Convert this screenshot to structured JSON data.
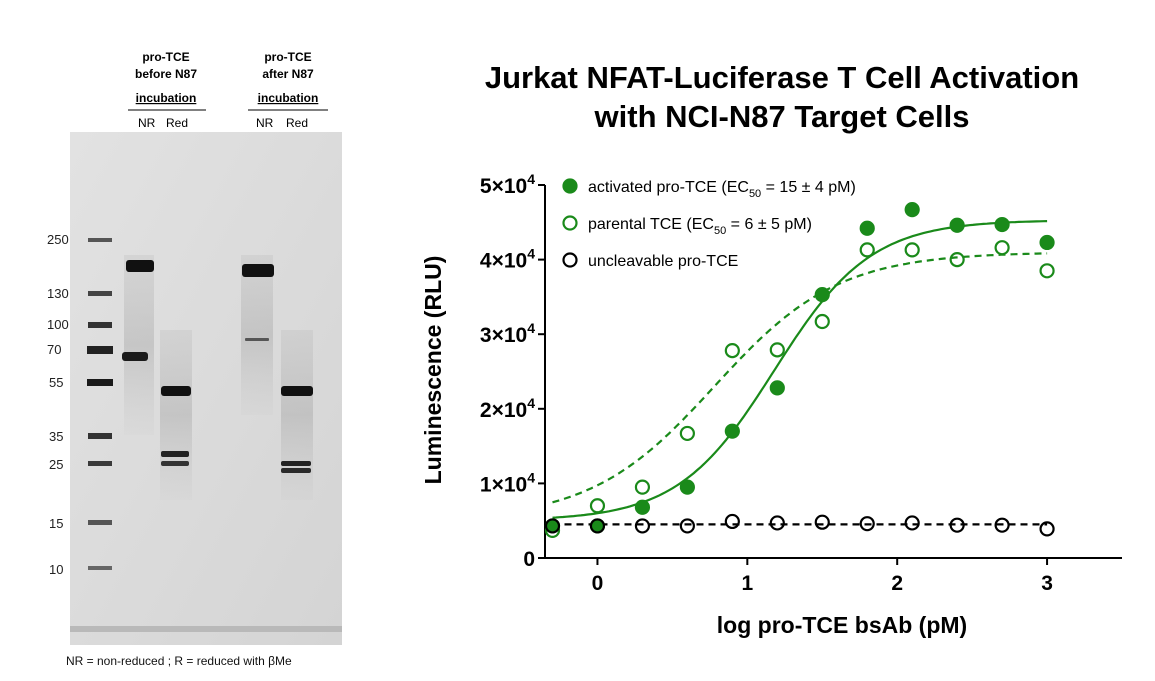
{
  "gel": {
    "headers": [
      {
        "lines": [
          "pro-TCE",
          "before N87",
          "incubation"
        ],
        "lanes": [
          "NR",
          "Red"
        ]
      },
      {
        "lines": [
          "pro-TCE",
          "after N87",
          "incubation"
        ],
        "lanes": [
          "NR",
          "Red"
        ]
      }
    ],
    "markers": [
      "250",
      "130",
      "100",
      "70",
      "55",
      "35",
      "25",
      "15",
      "10"
    ],
    "footnote": "NR = non-reduced ; R = reduced with βMe"
  },
  "chart_data": {
    "type": "scatter",
    "title_lines": [
      "Jurkat NFAT-Luciferase T Cell Activation",
      "with NCI-N87 Target Cells"
    ],
    "xlabel": "log pro-TCE bsAb (pM)",
    "ylabel": "Luminescence (RLU)",
    "xlim": [
      -0.35,
      3.5
    ],
    "ylim": [
      0,
      50000
    ],
    "xticks": [
      0,
      1,
      2,
      3
    ],
    "yticks": [
      {
        "value": 0,
        "base": "0",
        "exp": ""
      },
      {
        "value": 10000,
        "base": "1×10",
        "exp": "4"
      },
      {
        "value": 20000,
        "base": "2×10",
        "exp": "4"
      },
      {
        "value": 30000,
        "base": "3×10",
        "exp": "4"
      },
      {
        "value": 40000,
        "base": "4×10",
        "exp": "4"
      },
      {
        "value": 50000,
        "base": "5×10",
        "exp": "4"
      }
    ],
    "legend_position": "top-left",
    "series": [
      {
        "name": "activated pro-TCE (EC50 = 15 ± 4 pM)",
        "legend_pre": "activated pro-TCE (EC",
        "legend_sub": "50",
        "legend_post": " = 15 ± 4 pM)",
        "marker": "filled-circle",
        "color": "#1a8a1a",
        "fit": "solid",
        "x": [
          -0.3,
          0,
          0.3,
          0.6,
          0.9,
          1.2,
          1.5,
          1.8,
          2.1,
          2.4,
          2.7,
          3.0
        ],
        "y": [
          4300,
          4300,
          6800,
          9500,
          17000,
          22800,
          35300,
          44200,
          46700,
          44600,
          44700,
          42300
        ],
        "fit_params": {
          "bottom": 5000,
          "top": 45300,
          "log_ec50": 1.18,
          "hill": 1.35
        }
      },
      {
        "name": "parental TCE (EC50 = 6 ± 5 pM)",
        "legend_pre": "parental TCE (EC",
        "legend_sub": "50",
        "legend_post": " = 6 ± 5 pM)",
        "marker": "open-circle",
        "color": "#1a8a1a",
        "fit": "dashed",
        "x": [
          -0.3,
          0,
          0.3,
          0.6,
          0.9,
          1.2,
          1.5,
          1.8,
          2.1,
          2.4,
          2.7,
          3.0
        ],
        "y": [
          3700,
          7000,
          9500,
          16700,
          27800,
          27900,
          31700,
          41300,
          41300,
          40000,
          41600,
          38500
        ],
        "fit_params": {
          "bottom": 5000,
          "top": 41000,
          "log_ec50": 0.78,
          "hill": 1.05
        }
      },
      {
        "name": "uncleavable pro-TCE",
        "legend_pre": "uncleavable pro-TCE",
        "legend_sub": "",
        "legend_post": "",
        "marker": "open-circle",
        "color": "#000000",
        "fit": "dashed",
        "x": [
          -0.3,
          0,
          0.3,
          0.6,
          0.9,
          1.2,
          1.5,
          1.8,
          2.1,
          2.4,
          2.7,
          3.0
        ],
        "y": [
          4300,
          4300,
          4300,
          4300,
          4900,
          4700,
          4800,
          4600,
          4700,
          4400,
          4400,
          3900
        ],
        "fit_params": {
          "flat": 4500
        }
      }
    ]
  }
}
